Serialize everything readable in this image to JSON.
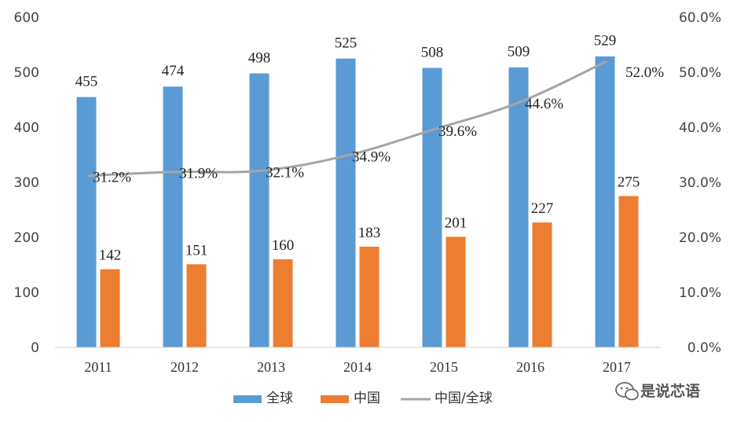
{
  "chart_data": {
    "type": "bar",
    "categories": [
      "2011",
      "2012",
      "2013",
      "2014",
      "2015",
      "2016",
      "2017"
    ],
    "series": [
      {
        "name": "全球",
        "type": "bar",
        "axis": "left",
        "color": "#5b9bd5",
        "values": [
          455,
          474,
          498,
          525,
          508,
          509,
          529
        ],
        "labels": [
          "455",
          "474",
          "498",
          "525",
          "508",
          "509",
          "529"
        ]
      },
      {
        "name": "中国",
        "type": "bar",
        "axis": "left",
        "color": "#ed7d31",
        "values": [
          142,
          151,
          160,
          183,
          201,
          227,
          275
        ],
        "labels": [
          "142",
          "151",
          "160",
          "183",
          "201",
          "227",
          "275"
        ]
      },
      {
        "name": "中国/全球",
        "type": "line",
        "axis": "right",
        "color": "#a5a5a5",
        "values": [
          31.2,
          31.9,
          32.1,
          34.9,
          39.6,
          44.6,
          52.0
        ],
        "labels": [
          "31.2%",
          "31.9%",
          "32.1%",
          "34.9%",
          "39.6%",
          "44.6%",
          "52.0%"
        ]
      }
    ],
    "yleft": {
      "range": [
        0,
        600
      ],
      "ticks": [
        "0",
        "100",
        "200",
        "300",
        "400",
        "500",
        "600"
      ]
    },
    "yright": {
      "range": [
        0,
        60
      ],
      "ticks": [
        "0.0%",
        "10.0%",
        "20.0%",
        "30.0%",
        "40.0%",
        "50.0%",
        "60.0%"
      ]
    },
    "legend_position": "bottom",
    "grid": false
  },
  "watermark": {
    "text": "是说芯语",
    "icon": "wechat-icon"
  }
}
